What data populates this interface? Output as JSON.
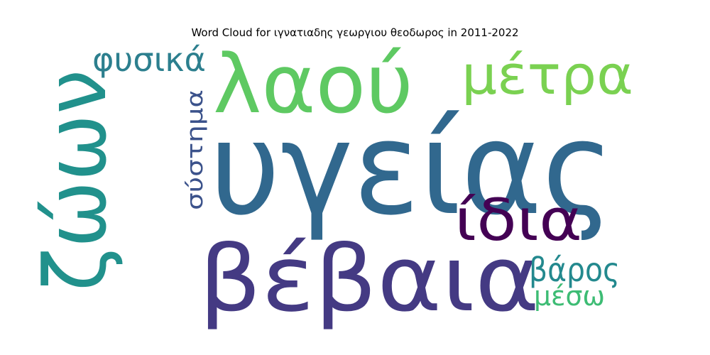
{
  "chart_data": {
    "type": "wordcloud",
    "title": "Word Cloud for ιγνατιαδης γεωργιου θεοδωρος in 2011-2022",
    "words": [
      {
        "text": "υγείας",
        "color": "#31688e"
      },
      {
        "text": "βέβαια",
        "color": "#443a83"
      },
      {
        "text": "ζώων",
        "color": "#21918c"
      },
      {
        "text": "λαού",
        "color": "#5ec962"
      },
      {
        "text": "μέτρα",
        "color": "#7ad151"
      },
      {
        "text": "ίδια",
        "color": "#440154"
      },
      {
        "text": "φυσικά",
        "color": "#2c7f8e"
      },
      {
        "text": "σύστημα",
        "color": "#3b528b"
      },
      {
        "text": "βάρος",
        "color": "#23898e"
      },
      {
        "text": "μέσω",
        "color": "#3dbc74"
      }
    ]
  }
}
